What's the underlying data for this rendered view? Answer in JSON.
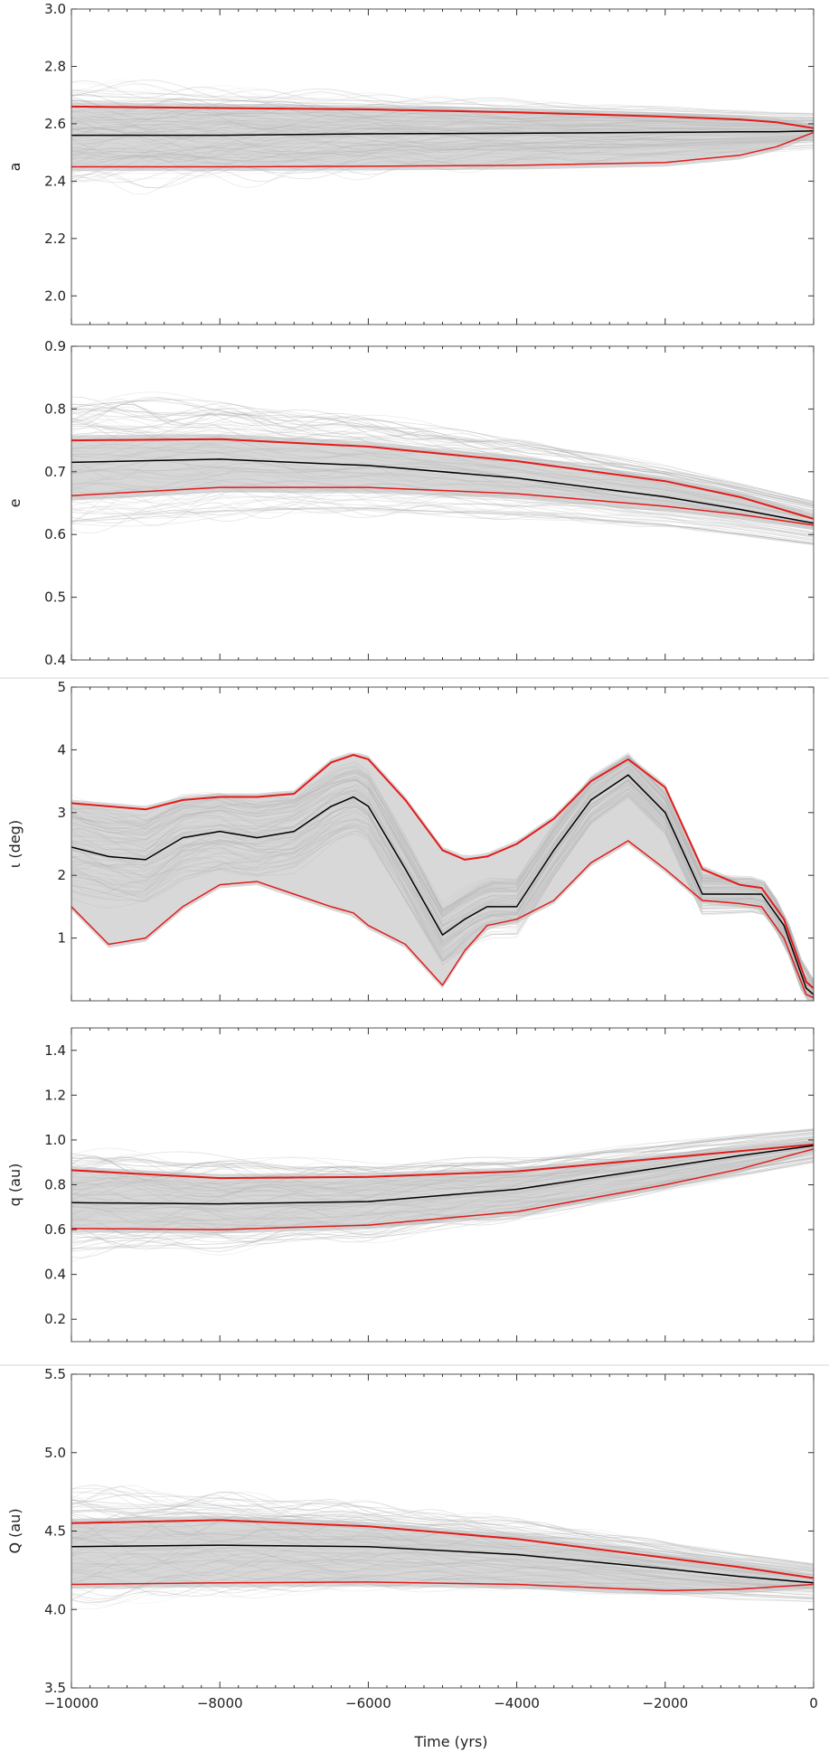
{
  "figure": {
    "xlabel": "Time (yrs)",
    "xticks": [
      "−10000",
      "−8000",
      "−6000",
      "−4000",
      "−2000",
      "0"
    ],
    "colors": {
      "envelope": "#e21b1b",
      "median": "#000000",
      "cloud": "#b8b8b8",
      "frame": "#555555"
    }
  },
  "chart_data": [
    {
      "type": "line",
      "id": "a",
      "ylabel": "a",
      "xlim": [
        -10000,
        0
      ],
      "ylim": [
        1.9,
        3.0
      ],
      "yticks": [
        2.0,
        2.2,
        2.4,
        2.6,
        2.8,
        3.0
      ],
      "ytick_labels": [
        "2.0",
        "2.2",
        "2.4",
        "2.6",
        "2.8",
        "3.0"
      ],
      "cloud_half_width": 0.18,
      "x": [
        -10000,
        -8000,
        -6000,
        -4000,
        -2000,
        -1000,
        -500,
        0
      ],
      "series": [
        {
          "name": "upper",
          "values": [
            2.66,
            2.655,
            2.65,
            2.64,
            2.625,
            2.615,
            2.605,
            2.585
          ]
        },
        {
          "name": "median",
          "values": [
            2.56,
            2.56,
            2.565,
            2.567,
            2.57,
            2.572,
            2.572,
            2.575
          ]
        },
        {
          "name": "lower",
          "values": [
            2.45,
            2.45,
            2.452,
            2.455,
            2.465,
            2.49,
            2.52,
            2.57
          ]
        }
      ]
    },
    {
      "type": "line",
      "id": "e",
      "ylabel": "e",
      "xlim": [
        -10000,
        0
      ],
      "ylim": [
        0.4,
        0.9
      ],
      "yticks": [
        0.4,
        0.5,
        0.6,
        0.7,
        0.8,
        0.9
      ],
      "ytick_labels": [
        "0.4",
        "0.5",
        "0.6",
        "0.7",
        "0.8",
        "0.9"
      ],
      "cloud_half_width": 0.1,
      "x": [
        -10000,
        -8000,
        -6000,
        -4000,
        -2000,
        -1000,
        0
      ],
      "series": [
        {
          "name": "upper",
          "values": [
            0.75,
            0.752,
            0.74,
            0.717,
            0.685,
            0.66,
            0.625
          ]
        },
        {
          "name": "median",
          "values": [
            0.715,
            0.72,
            0.71,
            0.69,
            0.66,
            0.64,
            0.618
          ]
        },
        {
          "name": "lower",
          "values": [
            0.662,
            0.675,
            0.675,
            0.665,
            0.645,
            0.632,
            0.615
          ]
        }
      ]
    },
    {
      "type": "line",
      "id": "i",
      "ylabel": "ι (deg)",
      "xlim": [
        -10000,
        0
      ],
      "ylim": [
        0,
        5
      ],
      "yticks": [
        1,
        2,
        3,
        4,
        5
      ],
      "ytick_labels": [
        "1",
        "2",
        "3",
        "4",
        "5"
      ],
      "cloud_half_width": 0.7,
      "x": [
        -10000,
        -9500,
        -9000,
        -8500,
        -8000,
        -7500,
        -7000,
        -6500,
        -6200,
        -6000,
        -5500,
        -5000,
        -4700,
        -4400,
        -4000,
        -3500,
        -3000,
        -2500,
        -2000,
        -1500,
        -1000,
        -700,
        -400,
        -100,
        0
      ],
      "series": [
        {
          "name": "upper",
          "values": [
            3.15,
            3.1,
            3.05,
            3.2,
            3.25,
            3.25,
            3.3,
            3.8,
            3.92,
            3.85,
            3.2,
            2.4,
            2.25,
            2.3,
            2.5,
            2.9,
            3.5,
            3.85,
            3.4,
            2.1,
            1.85,
            1.8,
            1.3,
            0.3,
            0.2
          ]
        },
        {
          "name": "median",
          "values": [
            2.45,
            2.3,
            2.25,
            2.6,
            2.7,
            2.6,
            2.7,
            3.1,
            3.25,
            3.1,
            2.1,
            1.05,
            1.3,
            1.5,
            1.5,
            2.4,
            3.2,
            3.6,
            3.0,
            1.7,
            1.7,
            1.7,
            1.2,
            0.2,
            0.1
          ]
        },
        {
          "name": "lower",
          "values": [
            1.5,
            0.9,
            1.0,
            1.5,
            1.85,
            1.9,
            1.7,
            1.5,
            1.4,
            1.2,
            0.9,
            0.25,
            0.8,
            1.2,
            1.3,
            1.6,
            2.2,
            2.55,
            2.1,
            1.6,
            1.55,
            1.5,
            1.0,
            0.1,
            0.05
          ]
        }
      ]
    },
    {
      "type": "line",
      "id": "q",
      "ylabel": "q (au)",
      "xlim": [
        -10000,
        0
      ],
      "ylim": [
        0.1,
        1.5
      ],
      "yticks": [
        0.2,
        0.4,
        0.6,
        0.8,
        1.0,
        1.2,
        1.4
      ],
      "ytick_labels": [
        "0.2",
        "0.4",
        "0.6",
        "0.8",
        "1.0",
        "1.2",
        "1.4"
      ],
      "cloud_half_width": 0.22,
      "x": [
        -10000,
        -8000,
        -6000,
        -4000,
        -2000,
        -1000,
        0
      ],
      "series": [
        {
          "name": "upper",
          "values": [
            0.865,
            0.83,
            0.835,
            0.86,
            0.92,
            0.95,
            0.98
          ]
        },
        {
          "name": "median",
          "values": [
            0.72,
            0.715,
            0.725,
            0.78,
            0.88,
            0.93,
            0.975
          ]
        },
        {
          "name": "lower",
          "values": [
            0.605,
            0.6,
            0.62,
            0.68,
            0.8,
            0.87,
            0.96
          ]
        }
      ]
    },
    {
      "type": "line",
      "id": "Q",
      "ylabel": "Q (au)",
      "xlim": [
        -10000,
        0
      ],
      "ylim": [
        3.5,
        5.5
      ],
      "yticks": [
        3.5,
        4.0,
        4.5,
        5.0,
        5.5
      ],
      "ytick_labels": [
        "3.5",
        "4.0",
        "4.5",
        "5.0",
        "5.5"
      ],
      "cloud_half_width": 0.35,
      "x": [
        -10000,
        -8000,
        -6000,
        -4000,
        -2000,
        -1000,
        0
      ],
      "series": [
        {
          "name": "upper",
          "values": [
            4.55,
            4.57,
            4.53,
            4.45,
            4.33,
            4.27,
            4.2
          ]
        },
        {
          "name": "median",
          "values": [
            4.4,
            4.41,
            4.4,
            4.35,
            4.26,
            4.21,
            4.17
          ]
        },
        {
          "name": "lower",
          "values": [
            4.16,
            4.17,
            4.175,
            4.16,
            4.12,
            4.13,
            4.16
          ]
        }
      ]
    }
  ]
}
